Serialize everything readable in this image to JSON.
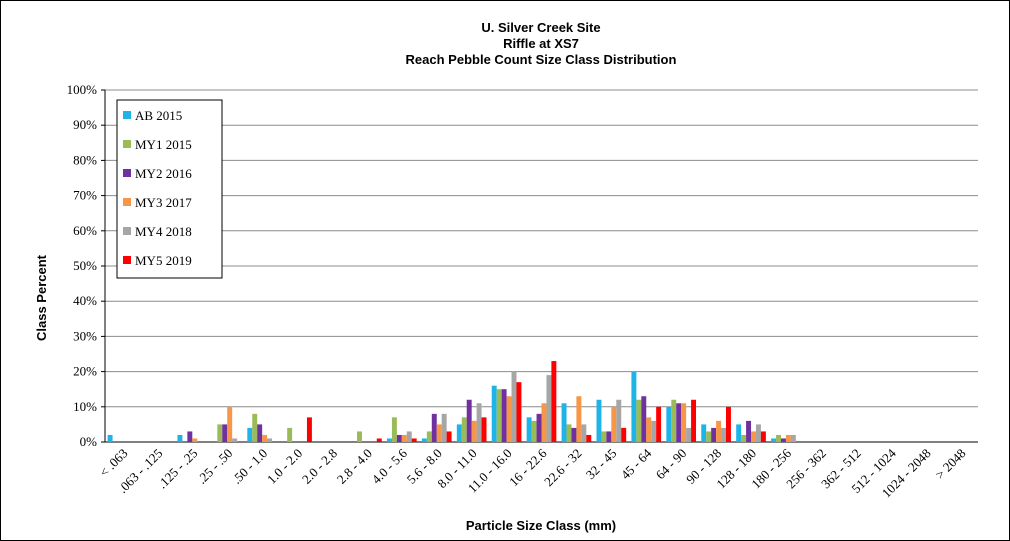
{
  "chart_data": {
    "type": "bar",
    "title": [
      "U. Silver Creek Site",
      "Riffle at XS7",
      "Reach Pebble Count Size Class Distribution"
    ],
    "y_label": "Class Percent",
    "x_label": "Particle Size Class (mm)",
    "categories": [
      "< .063",
      ".063 - .125",
      ".125 - .25",
      ".25 - .50",
      ".50 - 1.0",
      "1.0 - 2.0",
      "2.0 - 2.8",
      "2.8 - 4.0",
      "4.0 - 5.6",
      "5.6 - 8.0",
      "8.0 - 11.0",
      "11.0 - 16.0",
      "16 - 22.6",
      "22.6 - 32",
      "32 - 45",
      "45 - 64",
      "64 - 90",
      "90 - 128",
      "128 - 180",
      "180 - 256",
      "256 - 362",
      "362 - 512",
      "512 - 1024",
      "1024 - 2048",
      "> 2048"
    ],
    "series": [
      {
        "name": "AB 2015",
        "color": "#1fb4e8",
        "values": [
          2,
          0,
          2,
          0,
          4,
          0,
          0,
          0,
          1,
          1,
          5,
          16,
          7,
          11,
          12,
          20,
          10,
          5,
          5,
          1,
          0,
          0,
          0,
          0,
          0
        ]
      },
      {
        "name": "MY1 2015",
        "color": "#9bbb59",
        "values": [
          0,
          0,
          0,
          5,
          8,
          4,
          0,
          3,
          7,
          3,
          7,
          15,
          6,
          5,
          3,
          12,
          12,
          3,
          2,
          2,
          0,
          0,
          0,
          0,
          0
        ]
      },
      {
        "name": "MY2 2016",
        "color": "#7030a0",
        "values": [
          0,
          0,
          3,
          5,
          5,
          0,
          0,
          0,
          2,
          8,
          12,
          15,
          8,
          4,
          3,
          13,
          11,
          4,
          6,
          1,
          0,
          0,
          0,
          0,
          0
        ]
      },
      {
        "name": "MY3 2017",
        "color": "#f79646",
        "values": [
          0,
          0,
          1,
          10,
          2,
          0,
          0,
          0,
          2,
          5,
          6,
          13,
          11,
          13,
          10,
          7,
          11,
          6,
          3,
          2,
          0,
          0,
          0,
          0,
          0
        ]
      },
      {
        "name": "MY4 2018",
        "color": "#a6a6a6",
        "values": [
          0,
          0,
          0,
          1,
          1,
          0,
          0,
          0,
          3,
          8,
          11,
          20,
          19,
          5,
          12,
          6,
          4,
          4,
          5,
          2,
          0,
          0,
          0,
          0,
          0
        ]
      },
      {
        "name": "MY5 2019",
        "color": "#ff0000",
        "values": [
          0,
          0,
          0,
          0,
          0,
          7,
          0,
          1,
          1,
          3,
          7,
          17,
          23,
          2,
          4,
          10,
          12,
          10,
          3,
          0,
          0,
          0,
          0,
          0,
          0
        ]
      }
    ],
    "ylim": [
      0,
      100
    ],
    "yticks": [
      {
        "value": 0,
        "label": "0%"
      },
      {
        "value": 10,
        "label": "10%"
      },
      {
        "value": 20,
        "label": "20%"
      },
      {
        "value": 30,
        "label": "30%"
      },
      {
        "value": 40,
        "label": "40%"
      },
      {
        "value": 50,
        "label": "50%"
      },
      {
        "value": 60,
        "label": "60%"
      },
      {
        "value": 70,
        "label": "70%"
      },
      {
        "value": 80,
        "label": "80%"
      },
      {
        "value": 90,
        "label": "90%"
      },
      {
        "value": 100,
        "label": "100%"
      }
    ],
    "grid": true,
    "legend": "upper left"
  }
}
